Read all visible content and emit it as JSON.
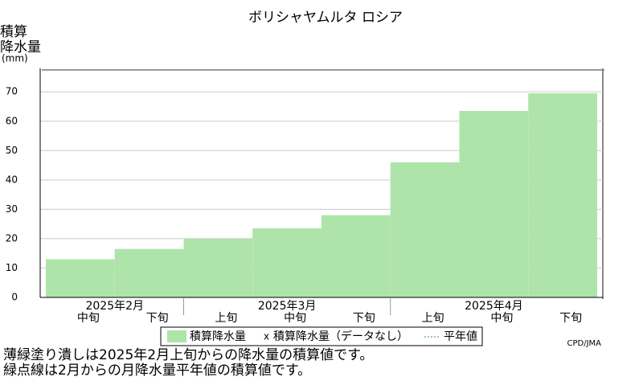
{
  "chart_data": {
    "type": "bar",
    "title": "ボリシャヤムルタ ロシア",
    "y_label": [
      "積算",
      "降水量",
      "(mm)"
    ],
    "groups": [
      {
        "label": "2025年2月",
        "categories": [
          "中旬",
          "下旬"
        ]
      },
      {
        "label": "2025年3月",
        "categories": [
          "上旬",
          "中旬",
          "下旬"
        ]
      },
      {
        "label": "2025年4月",
        "categories": [
          "上旬",
          "中旬",
          "下旬"
        ]
      }
    ],
    "values": [
      13,
      16.5,
      20,
      23.5,
      28,
      46,
      63.5,
      69.5
    ],
    "color": "#aee4aa",
    "ylim": [
      0,
      78
    ],
    "yticks": [
      0,
      10,
      20,
      30,
      40,
      50,
      60,
      70
    ],
    "grid": true,
    "legend": [
      "積算降水量",
      "積算降水量（データなし）",
      "平年値"
    ],
    "source": "CPD/JMA",
    "notes": [
      "薄緑塗り潰しは2025年2月上旬からの降水量の積算値です。",
      "緑点線は2月からの月降水量平年値の積算値です。"
    ]
  }
}
